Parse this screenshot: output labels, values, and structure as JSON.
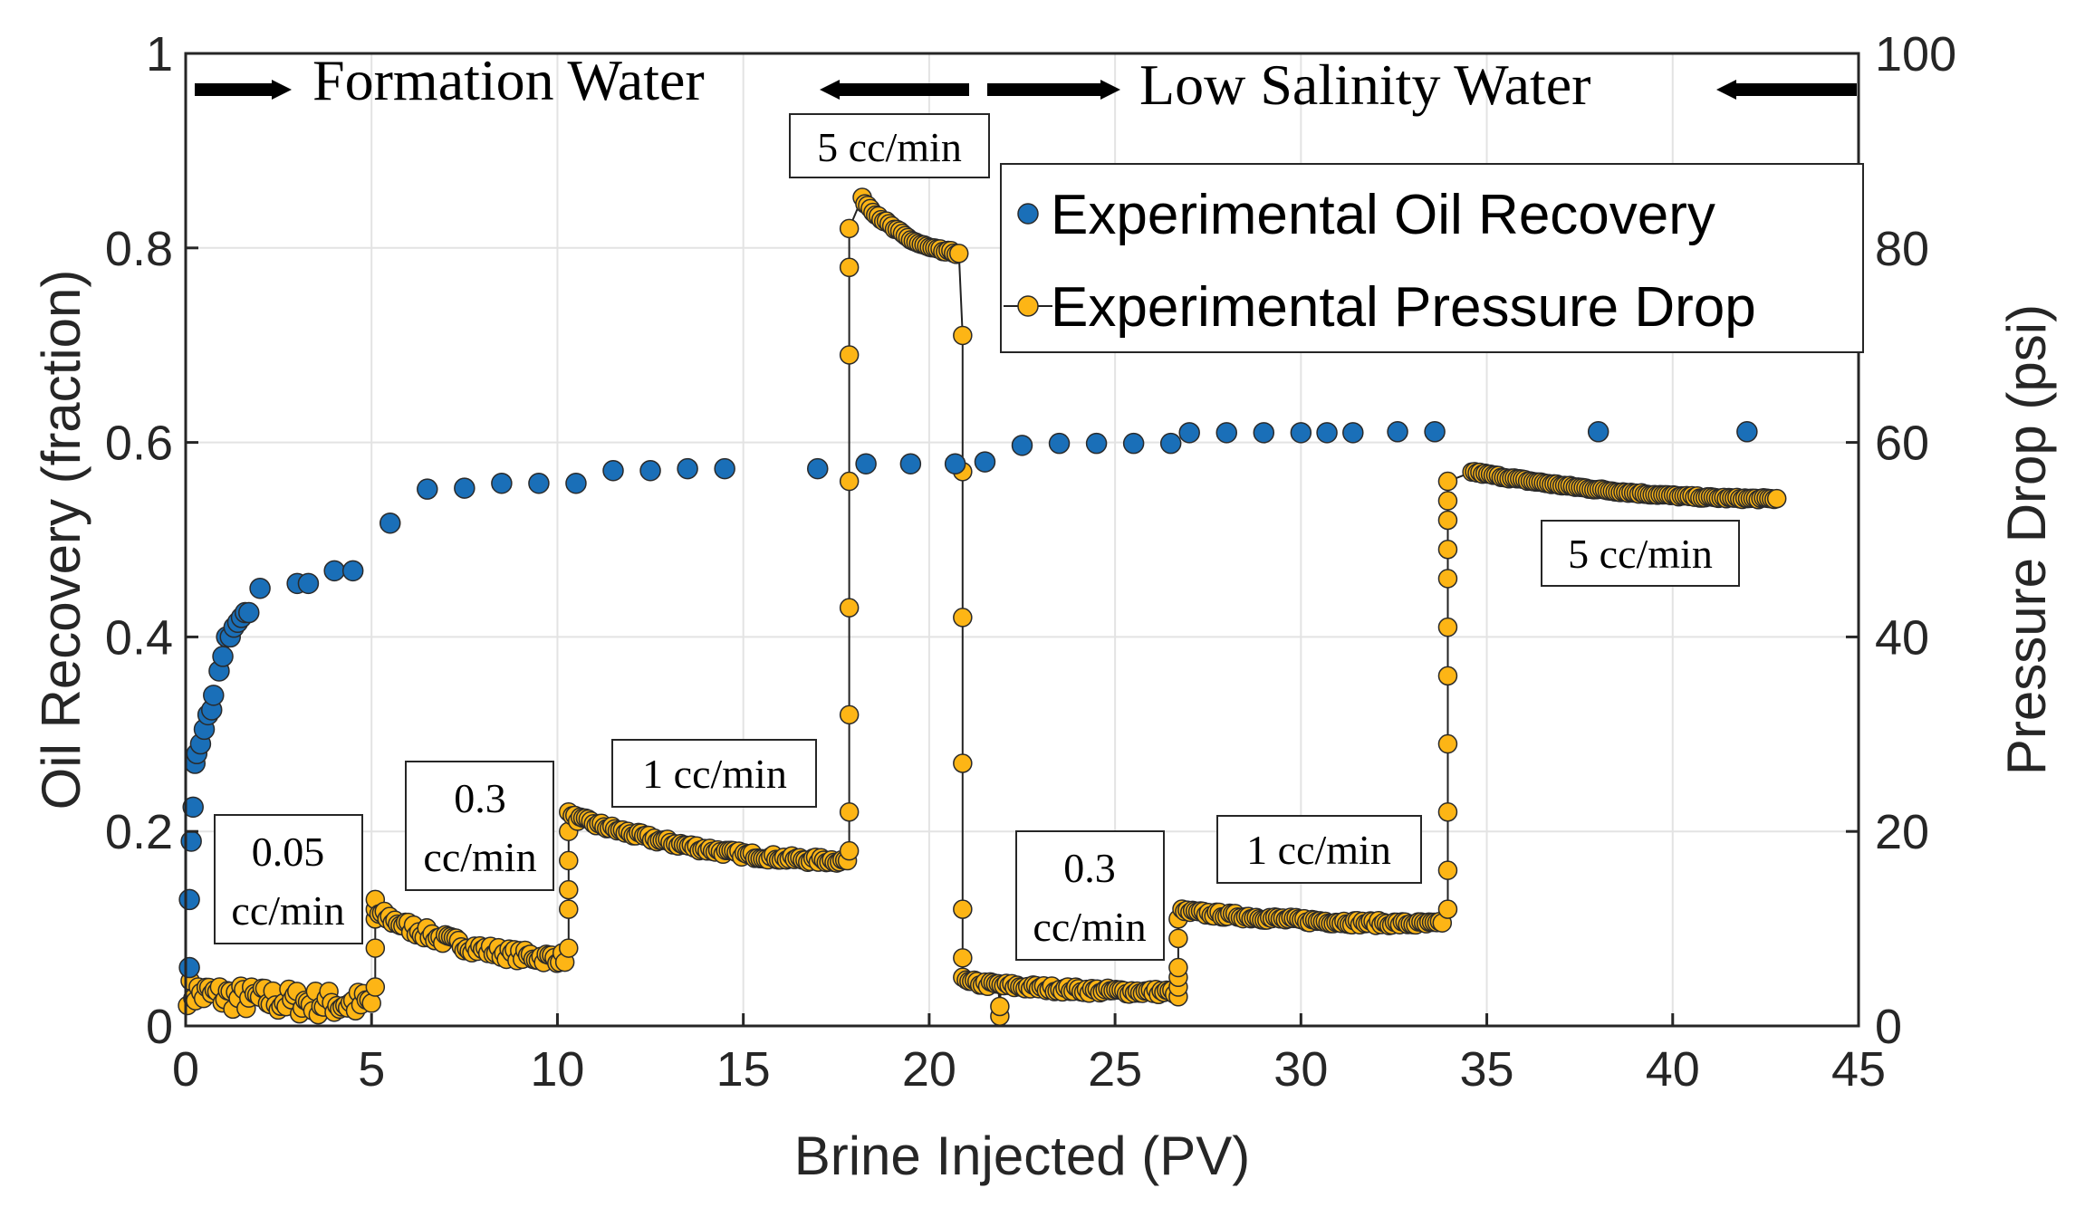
{
  "chart_data": {
    "type": "scatter",
    "xlabel": "Brine Injected (PV)",
    "ylabel": "Oil Recovery (fraction)",
    "y2label": "Pressure Drop (psi)",
    "xlim": [
      0,
      45
    ],
    "ylim": [
      0,
      1
    ],
    "y2lim": [
      0,
      100
    ],
    "xticks": [
      "0",
      "5",
      "10",
      "15",
      "20",
      "25",
      "30",
      "35",
      "40",
      "45"
    ],
    "yticks": [
      "0",
      "0.2",
      "0.4",
      "0.6",
      "0.8",
      "1"
    ],
    "y2ticks": [
      "0",
      "20",
      "40",
      "60",
      "80",
      "100"
    ],
    "grid": true,
    "legend_position": "top-right",
    "colors": {
      "oil": "#1a6fb8",
      "pressure": "#fdb515",
      "marker_edge": "#2a2a2a",
      "line": "#222222"
    },
    "series": [
      {
        "name": "Experimental Oil Recovery",
        "axis": "left",
        "marker": "circle",
        "points": [
          [
            0.1,
            0.06
          ],
          [
            0.1,
            0.13
          ],
          [
            0.15,
            0.19
          ],
          [
            0.2,
            0.225
          ],
          [
            0.25,
            0.27
          ],
          [
            0.3,
            0.28
          ],
          [
            0.4,
            0.29
          ],
          [
            0.5,
            0.305
          ],
          [
            0.6,
            0.32
          ],
          [
            0.7,
            0.325
          ],
          [
            0.75,
            0.34
          ],
          [
            0.9,
            0.365
          ],
          [
            1.0,
            0.38
          ],
          [
            1.1,
            0.4
          ],
          [
            1.2,
            0.4
          ],
          [
            1.3,
            0.41
          ],
          [
            1.4,
            0.415
          ],
          [
            1.5,
            0.42
          ],
          [
            1.6,
            0.425
          ],
          [
            1.7,
            0.425
          ],
          [
            2.0,
            0.45
          ],
          [
            3.0,
            0.455
          ],
          [
            3.3,
            0.455
          ],
          [
            4.0,
            0.468
          ],
          [
            4.5,
            0.468
          ],
          [
            5.5,
            0.517
          ],
          [
            6.5,
            0.552
          ],
          [
            7.5,
            0.553
          ],
          [
            8.5,
            0.558
          ],
          [
            9.5,
            0.558
          ],
          [
            10.5,
            0.558
          ],
          [
            11.5,
            0.571
          ],
          [
            12.5,
            0.571
          ],
          [
            13.5,
            0.573
          ],
          [
            14.5,
            0.573
          ],
          [
            17.0,
            0.573
          ],
          [
            18.3,
            0.578
          ],
          [
            19.5,
            0.578
          ],
          [
            20.7,
            0.578
          ],
          [
            21.5,
            0.58
          ],
          [
            22.5,
            0.597
          ],
          [
            23.5,
            0.599
          ],
          [
            24.5,
            0.599
          ],
          [
            25.5,
            0.599
          ],
          [
            26.5,
            0.599
          ],
          [
            27.0,
            0.61
          ],
          [
            28.0,
            0.61
          ],
          [
            29.0,
            0.61
          ],
          [
            30.0,
            0.61
          ],
          [
            30.7,
            0.61
          ],
          [
            31.4,
            0.61
          ],
          [
            32.6,
            0.611
          ],
          [
            33.6,
            0.611
          ],
          [
            38.0,
            0.611
          ],
          [
            42.0,
            0.611
          ]
        ]
      },
      {
        "name": "Experimental Pressure Drop",
        "axis": "right",
        "marker": "circle-line",
        "segments": [
          {
            "x0": 0.05,
            "x1": 5.0,
            "y0": 3.5,
            "y1": 2.3,
            "noise": 1.4
          },
          {
            "x0": 5.2,
            "x1": 10.2,
            "y0": 11.5,
            "y1": 7.0,
            "noise": 0.6
          },
          {
            "x0": 10.4,
            "x1": 17.8,
            "y0": 21.5,
            "y1": 17.0,
            "noise": 0.3
          },
          {
            "x0": 18.2,
            "x1": 20.8,
            "y0": 85.0,
            "y1": 79.5,
            "noise": 0.2
          },
          {
            "x0": 21.0,
            "x1": 26.6,
            "y0": 4.5,
            "y1": 3.5,
            "noise": 0.3
          },
          {
            "x0": 26.8,
            "x1": 33.8,
            "y0": 11.8,
            "y1": 10.5,
            "noise": 0.25
          },
          {
            "x0": 34.6,
            "x1": 42.8,
            "y0": 57.0,
            "y1": 54.2,
            "noise": 0.1
          }
        ],
        "transitions": [
          {
            "x": 5.1,
            "values": [
              4,
              8,
              11,
              12,
              13
            ]
          },
          {
            "x": 10.3,
            "values": [
              8,
              12,
              14,
              17,
              20,
              22
            ]
          },
          {
            "x": 17.85,
            "values": [
              18,
              22,
              32,
              43,
              56,
              69,
              78,
              82
            ]
          },
          {
            "x": 20.9,
            "values": [
              71,
              57,
              42,
              27,
              12,
              7,
              5
            ]
          },
          {
            "x": 21.9,
            "values": [
              1,
              2
            ]
          },
          {
            "x": 26.7,
            "values": [
              3,
              4,
              5,
              6,
              9,
              11
            ]
          },
          {
            "x": 33.95,
            "values": [
              12,
              16,
              22,
              29,
              36,
              41,
              46,
              49,
              52,
              54,
              56
            ]
          }
        ]
      }
    ],
    "annotations": {
      "formation_water": "Formation Water",
      "low_salinity_water": "Low Salinity Water",
      "rate_5_top": "5 cc/min",
      "rate_005_line1": "0.05",
      "rate_005_line2": "cc/min",
      "rate_03a_line1": "0.3",
      "rate_03a_line2": "cc/min",
      "rate_1a": "1 cc/min",
      "rate_03b_line1": "0.3",
      "rate_03b_line2": "cc/min",
      "rate_1b": "1 cc/min",
      "rate_5b": "5 cc/min"
    }
  }
}
